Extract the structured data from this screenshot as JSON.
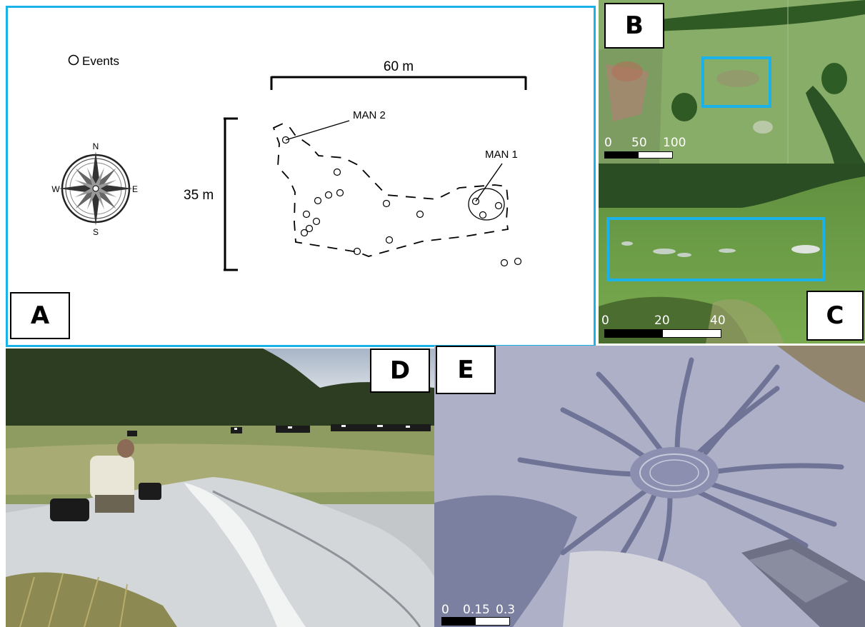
{
  "panel_a": {
    "label": "A",
    "legend": "Events",
    "width_label": "60 m",
    "height_label": "35 m",
    "man2_label": "MAN 2",
    "man1_label": "MAN 1",
    "compass": {
      "n": "N",
      "s": "S",
      "e": "E",
      "w": "W"
    },
    "border_color": "#1ab2e8"
  },
  "panel_b": {
    "label": "B",
    "scale": {
      "zero": "0",
      "mid": "50",
      "end": "100"
    }
  },
  "panel_c": {
    "label": "C",
    "scale": {
      "zero": "0",
      "mid": "20",
      "end": "40"
    }
  },
  "panel_d": {
    "label": "D"
  },
  "panel_e": {
    "label": "E",
    "scale": {
      "zero": "0",
      "mid": "0.15",
      "end": "0.3"
    }
  },
  "colors": {
    "highlight": "#1ab2e8"
  }
}
